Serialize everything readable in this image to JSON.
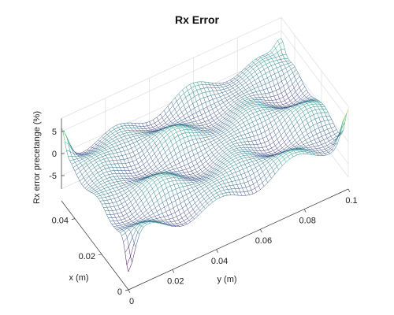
{
  "chart_data": {
    "type": "surface-mesh",
    "title": "Rx Error",
    "xlabel": "x (m)",
    "ylabel": "y (m)",
    "zlabel": "Rx error precetange (%)",
    "xlim": [
      0,
      0.05
    ],
    "ylim": [
      0,
      0.1
    ],
    "zlim": [
      -8,
      8
    ],
    "xticks": [
      "0",
      "0.02",
      "0.04"
    ],
    "xtick_values": [
      0,
      0.02,
      0.04
    ],
    "yticks": [
      "0",
      "0.02",
      "0.04",
      "0.06",
      "0.08",
      "0.1"
    ],
    "ytick_values": [
      0,
      0.02,
      0.04,
      0.06,
      0.08,
      0.1
    ],
    "zticks": [
      "-5",
      "0",
      "5"
    ],
    "ztick_values": [
      -5,
      0,
      5
    ],
    "grid": true,
    "colormap": "viridis",
    "mesh_resolution": [
      40,
      60
    ],
    "surface_samples": {
      "corner_x0_y0": -7.5,
      "corner_x0_y0.1": 7.0,
      "corner_x0.05_y0": 5.5,
      "interior_typical": 0
    }
  }
}
